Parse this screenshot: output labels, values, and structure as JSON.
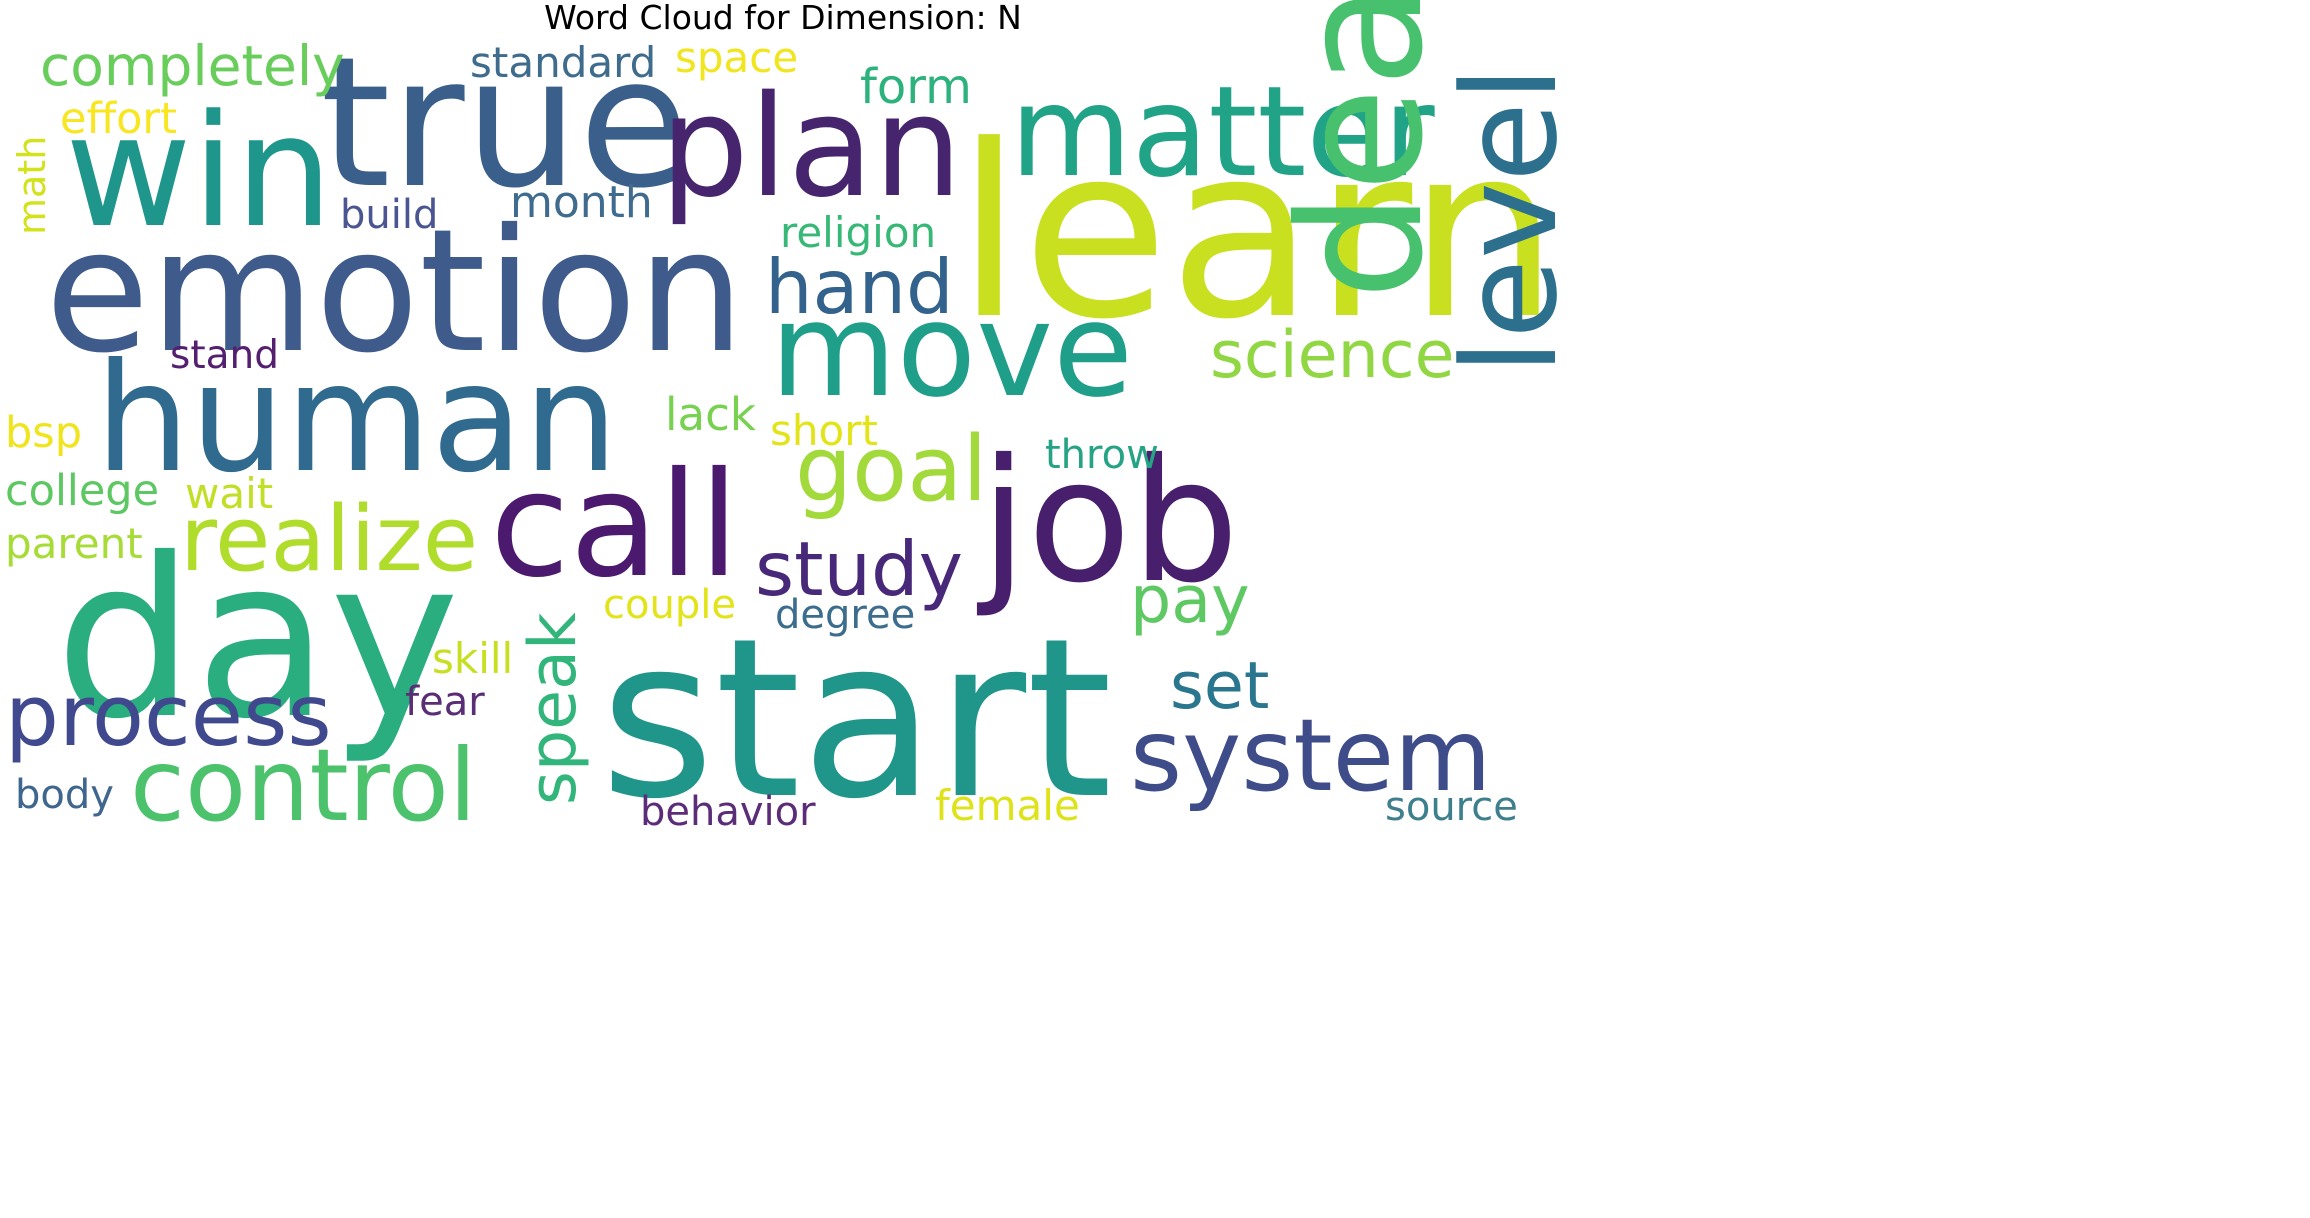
{
  "title": "Word Cloud for Dimension: N",
  "palette": "viridis",
  "background": "#ffffff",
  "words": [
    {
      "text": "learn",
      "color": "#c8e020"
    },
    {
      "text": "emotion",
      "color": "#3e5b8c"
    },
    {
      "text": "human",
      "color": "#306a8e"
    },
    {
      "text": "start",
      "color": "#20958a"
    },
    {
      "text": "day",
      "color": "#2aae80"
    },
    {
      "text": "true",
      "color": "#3b5f8b"
    },
    {
      "text": "win",
      "color": "#1f968b"
    },
    {
      "text": "plan",
      "color": "#46256e"
    },
    {
      "text": "matter",
      "color": "#20a386"
    },
    {
      "text": "call",
      "color": "#4b1a6e"
    },
    {
      "text": "job",
      "color": "#471f6c"
    },
    {
      "text": "move",
      "color": "#1f9e89"
    },
    {
      "text": "deal",
      "color": "#48c16e"
    },
    {
      "text": "level",
      "color": "#2d708e"
    },
    {
      "text": "system",
      "color": "#3e4c8a"
    },
    {
      "text": "control",
      "color": "#4cc26c"
    },
    {
      "text": "realize",
      "color": "#b0dc2b"
    },
    {
      "text": "process",
      "color": "#40498e"
    },
    {
      "text": "goal",
      "color": "#a2d93b"
    },
    {
      "text": "study",
      "color": "#482878"
    },
    {
      "text": "hand",
      "color": "#33638d"
    },
    {
      "text": "speak",
      "color": "#31b57b"
    },
    {
      "text": "pay",
      "color": "#5ec962"
    },
    {
      "text": "set",
      "color": "#2a768e"
    },
    {
      "text": "science",
      "color": "#90d743"
    },
    {
      "text": "completely",
      "color": "#68cd5b"
    },
    {
      "text": "standard",
      "color": "#3f6c8d"
    },
    {
      "text": "form",
      "color": "#2db27d"
    },
    {
      "text": "space",
      "color": "#f0e51f"
    },
    {
      "text": "effort",
      "color": "#f8e621"
    },
    {
      "text": "month",
      "color": "#3e6b8e"
    },
    {
      "text": "build",
      "color": "#4a5591"
    },
    {
      "text": "religion",
      "color": "#37b877"
    },
    {
      "text": "stand",
      "color": "#541f6e"
    },
    {
      "text": "lack",
      "color": "#79d152"
    },
    {
      "text": "short",
      "color": "#e3e418"
    },
    {
      "text": "throw",
      "color": "#25a384"
    },
    {
      "text": "bsp",
      "color": "#f0e41c"
    },
    {
      "text": "college",
      "color": "#5dc863"
    },
    {
      "text": "wait",
      "color": "#c0df25"
    },
    {
      "text": "parent",
      "color": "#a7db35"
    },
    {
      "text": "couple",
      "color": "#e2e419"
    },
    {
      "text": "degree",
      "color": "#3c6d8d"
    },
    {
      "text": "skill",
      "color": "#c6e021"
    },
    {
      "text": "fear",
      "color": "#5a2d75"
    },
    {
      "text": "math",
      "color": "#d2e21b"
    },
    {
      "text": "body",
      "color": "#3f668e"
    },
    {
      "text": "behavior",
      "color": "#5b2d78"
    },
    {
      "text": "female",
      "color": "#dde318"
    },
    {
      "text": "source",
      "color": "#3e7f8e"
    }
  ]
}
